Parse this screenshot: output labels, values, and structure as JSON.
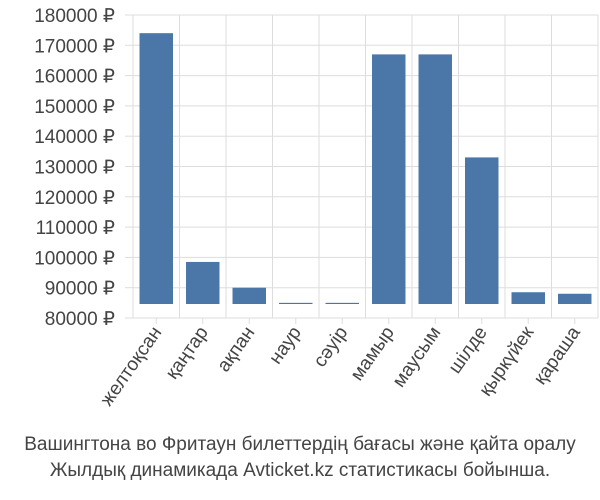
{
  "chart_data": {
    "type": "bar",
    "title": "",
    "xlabel": "",
    "ylabel": "",
    "categories": [
      "желтоқсан",
      "қаңтар",
      "ақпан",
      "наур",
      "сәуір",
      "мамыр",
      "маусым",
      "шілде",
      "қыркүйек",
      "қараша"
    ],
    "values": [
      174000,
      98500,
      90000,
      85000,
      85000,
      167000,
      167000,
      133000,
      88500,
      88000
    ],
    "ylim": [
      80000,
      180000
    ],
    "yticks": [
      80000,
      90000,
      100000,
      110000,
      120000,
      130000,
      140000,
      150000,
      160000,
      170000,
      180000
    ],
    "ytick_labels": [
      "80000 ₽",
      "90000 ₽",
      "100000 ₽",
      "110000 ₽",
      "120000 ₽",
      "130000 ₽",
      "140000 ₽",
      "150000 ₽",
      "160000 ₽",
      "170000 ₽",
      "180000 ₽"
    ],
    "bar_color": "#4a76a8",
    "grid": true,
    "grid_color": "#dddddd"
  },
  "caption": {
    "line1": "Вашингтона во Фритаун билеттердің бағасы және қайта оралу",
    "line2": "Жылдық динамикада Avticket.kz статистикасы бойынша."
  }
}
